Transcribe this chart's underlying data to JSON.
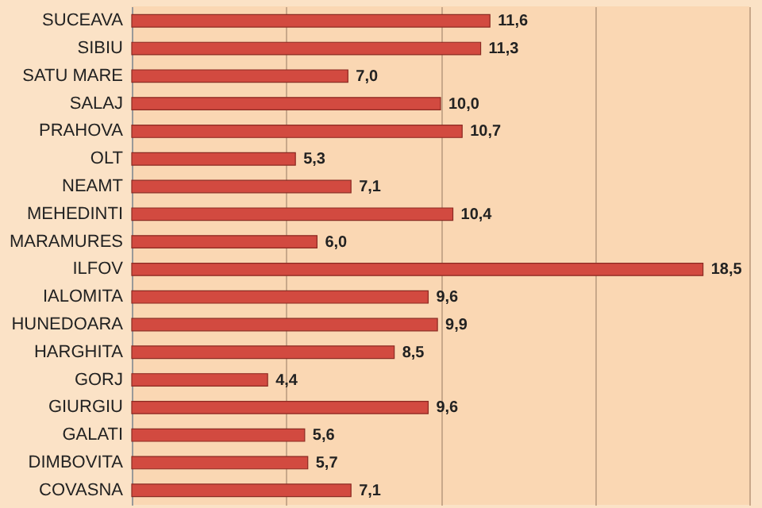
{
  "chart_data": {
    "type": "bar",
    "orientation": "horizontal",
    "categories": [
      "SUCEAVA",
      "SIBIU",
      "SATU MARE",
      "SALAJ",
      "PRAHOVA",
      "OLT",
      "NEAMT",
      "MEHEDINTI",
      "MARAMURES",
      "ILFOV",
      "IALOMITA",
      "HUNEDOARA",
      "HARGHITA",
      "GORJ",
      "GIURGIU",
      "GALATI",
      "DIMBOVITA",
      "COVASNA"
    ],
    "values": [
      11.6,
      11.3,
      7.0,
      10.0,
      10.7,
      5.3,
      7.1,
      10.4,
      6.0,
      18.5,
      9.6,
      9.9,
      8.5,
      4.4,
      9.6,
      5.6,
      5.7,
      7.1
    ],
    "value_labels": [
      "11,6",
      "11,3",
      "7,0",
      "10,0",
      "10,7",
      "5,3",
      "7,1",
      "10,4",
      "6,0",
      "18,5",
      "9,6",
      "9,9",
      "8,5",
      "4,4",
      "9,6",
      "5,6",
      "5,7",
      "7,1"
    ],
    "color": "#d24a40",
    "xlim": [
      0,
      20
    ],
    "xticks": [
      {
        "value": 0,
        "label": null
      },
      {
        "value": 5,
        "label": null
      },
      {
        "value": 10,
        "label": null
      },
      {
        "value": 15,
        "label": null
      },
      {
        "value": 20,
        "label": null
      }
    ],
    "grid": "x",
    "tick_labels": "y"
  }
}
